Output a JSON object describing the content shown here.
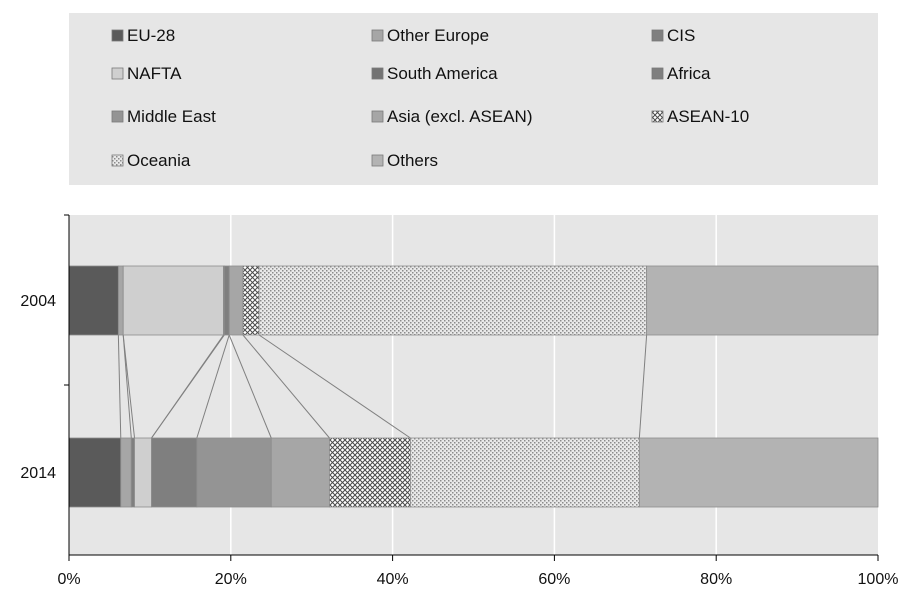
{
  "chart_data": {
    "type": "bar",
    "orientation": "horizontal",
    "stacked": true,
    "title": "",
    "xlabel": "",
    "ylabel": "",
    "xlim": [
      0,
      100
    ],
    "x_ticks": [
      "0%",
      "20%",
      "40%",
      "60%",
      "80%",
      "100%"
    ],
    "grid": true,
    "legend_position": "top",
    "categories": [
      "2004",
      "2014"
    ],
    "series": [
      {
        "name": "EU-28",
        "values": [
          6.1,
          6.4
        ],
        "color": "#5a5a5a"
      },
      {
        "name": "Other Europe",
        "values": [
          0.6,
          1.3
        ],
        "color": "#a6a6a6"
      },
      {
        "name": "CIS",
        "values": [
          0.0,
          0.4
        ],
        "color": "#7f7f7f"
      },
      {
        "name": "NAFTA",
        "values": [
          12.4,
          2.1
        ],
        "color": "#cfcfcf"
      },
      {
        "name": "South America",
        "values": [
          0.1,
          0.0
        ],
        "color": "#737373"
      },
      {
        "name": "Africa",
        "values": [
          0.6,
          5.6
        ],
        "color": "#7f7f7f"
      },
      {
        "name": "Middle East",
        "values": [
          0.0,
          9.2
        ],
        "color": "#949494"
      },
      {
        "name": "Asia (excl. ASEAN)",
        "values": [
          1.7,
          7.2
        ],
        "color": "#a6a6a6"
      },
      {
        "name": "ASEAN-10",
        "values": [
          2.0,
          10.0
        ],
        "color": "#8f8f8f"
      },
      {
        "name": "Oceania",
        "values": [
          47.9,
          28.3
        ],
        "color": "#d0d0d0"
      },
      {
        "name": "Others",
        "values": [
          28.6,
          29.5
        ],
        "color": "#b3b3b3"
      }
    ]
  }
}
